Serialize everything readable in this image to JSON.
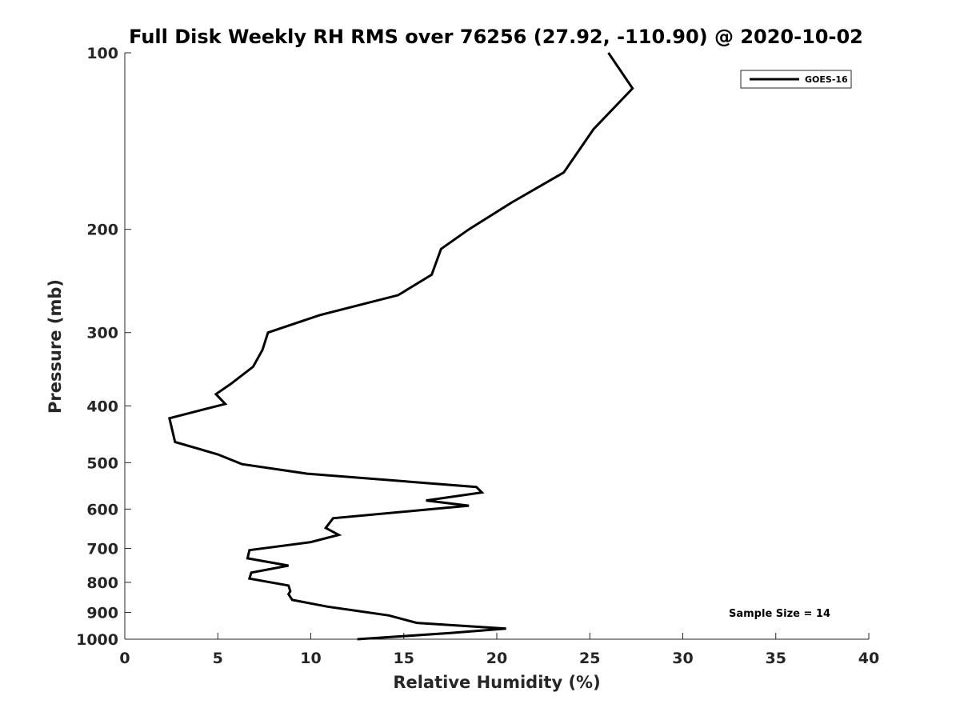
{
  "chart_data": {
    "type": "line",
    "title": "Full Disk Weekly RH RMS over 76256 (27.92, -110.90) @ 2020-10-02",
    "xlabel": "Relative Humidity (%)",
    "ylabel": "Pressure (mb)",
    "xlim": [
      0,
      40
    ],
    "ylim": [
      100,
      1000
    ],
    "y_scale": "log",
    "y_reversed": true,
    "grid": false,
    "legend_position": "top-right",
    "xticks": [
      "0",
      "5",
      "10",
      "15",
      "20",
      "25",
      "30",
      "35",
      "40"
    ],
    "yticks": [
      "100",
      "200",
      "300",
      "400",
      "500",
      "600",
      "700",
      "800",
      "900",
      "1000"
    ],
    "annotation": "Sample Size = 14",
    "series": [
      {
        "name": "GOES-16",
        "color": "#000000",
        "points": [
          [
            26.0,
            100
          ],
          [
            27.3,
            115
          ],
          [
            25.2,
            135
          ],
          [
            23.6,
            160
          ],
          [
            20.8,
            180
          ],
          [
            18.5,
            200
          ],
          [
            17.0,
            216
          ],
          [
            16.5,
            239
          ],
          [
            14.7,
            259
          ],
          [
            10.5,
            280
          ],
          [
            7.7,
            300
          ],
          [
            7.4,
            321
          ],
          [
            6.9,
            343
          ],
          [
            5.7,
            367
          ],
          [
            4.9,
            382
          ],
          [
            5.4,
            397
          ],
          [
            2.4,
            420
          ],
          [
            2.7,
            461
          ],
          [
            5.0,
            484
          ],
          [
            6.3,
            503
          ],
          [
            9.8,
            522
          ],
          [
            18.9,
            550
          ],
          [
            19.2,
            562
          ],
          [
            16.2,
            580
          ],
          [
            18.5,
            592
          ],
          [
            11.2,
            622
          ],
          [
            10.8,
            646
          ],
          [
            11.5,
            664
          ],
          [
            10.0,
            683
          ],
          [
            6.7,
            705
          ],
          [
            6.6,
            728
          ],
          [
            8.8,
            749
          ],
          [
            6.8,
            770
          ],
          [
            6.7,
            788
          ],
          [
            8.8,
            810
          ],
          [
            8.9,
            828
          ],
          [
            8.8,
            838
          ],
          [
            9.0,
            857
          ],
          [
            10.9,
            880
          ],
          [
            14.2,
            911
          ],
          [
            15.7,
            938
          ],
          [
            20.5,
            959
          ],
          [
            17.5,
            976
          ],
          [
            12.5,
            1000
          ]
        ]
      }
    ]
  }
}
